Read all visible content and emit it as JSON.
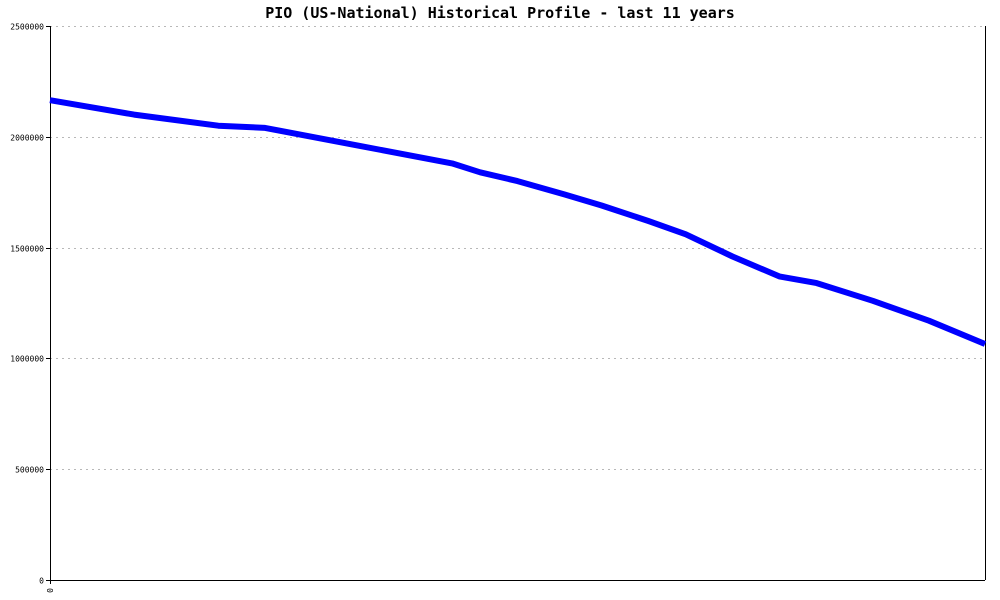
{
  "chart_data": {
    "type": "line",
    "title": "PIO (US-National) Historical Profile - last 11 years",
    "xlabel": "",
    "ylabel": "",
    "ylim": [
      0,
      2500000
    ],
    "yticks": [
      0,
      500000,
      1000000,
      1500000,
      2000000,
      2500000
    ],
    "ytick_labels": [
      "0",
      "500000",
      "1000000",
      "1500000",
      "2000000",
      "2500000"
    ],
    "xtick_labels": [
      "0"
    ],
    "grid": true,
    "legend": "none",
    "series": [
      {
        "color": "#0000ff",
        "x": [
          0,
          0.09,
          0.18,
          0.23,
          0.33,
          0.43,
          0.46,
          0.5,
          0.55,
          0.59,
          0.64,
          0.68,
          0.73,
          0.78,
          0.82,
          0.88,
          0.94,
          1.0
        ],
        "y": [
          2165000,
          2100000,
          2050000,
          2040000,
          1960000,
          1880000,
          1840000,
          1800000,
          1740000,
          1690000,
          1620000,
          1560000,
          1460000,
          1370000,
          1340000,
          1260000,
          1170000,
          1065000
        ]
      }
    ]
  }
}
